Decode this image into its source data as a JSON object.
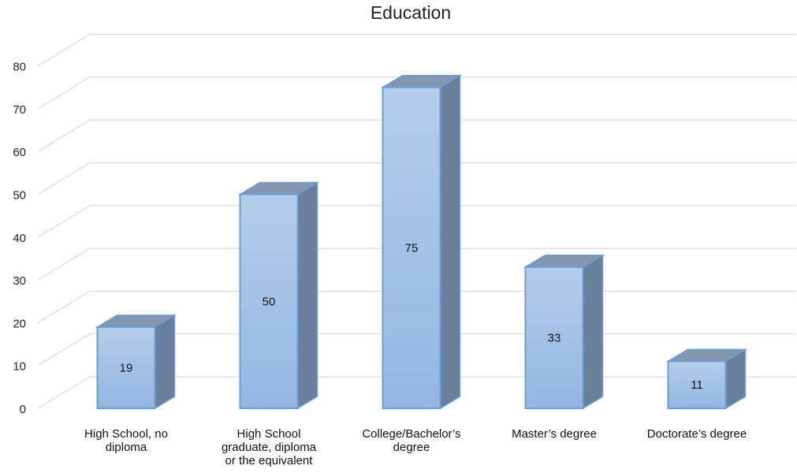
{
  "chart_data": {
    "type": "bar",
    "title": "Education",
    "xlabel": "",
    "ylabel": "",
    "ylim": [
      0,
      80
    ],
    "yticks": [
      "0",
      "10",
      "20",
      "30",
      "40",
      "50",
      "60",
      "70",
      "80"
    ],
    "grid": true,
    "legend": "none",
    "style": "3d-column",
    "categories": [
      [
        "High School, no",
        "diploma"
      ],
      [
        "High School",
        "graduate, diploma",
        "or the equivalent"
      ],
      [
        "College/Bachelor’s",
        "degree"
      ],
      [
        "Master’s degree"
      ],
      [
        "Doctorate’s degree"
      ]
    ],
    "values": [
      19,
      50,
      75,
      33,
      11
    ],
    "data_labels": [
      "19",
      "50",
      "75",
      "33",
      "11"
    ],
    "colors": {
      "bar_front_top": "#b4cdea",
      "bar_front_bottom": "#93b6e2",
      "bar_edge": "#6b9ed8",
      "bar_side": "#69809c",
      "bar_top": "#8296b0",
      "grid": "#d9d9d9"
    }
  }
}
